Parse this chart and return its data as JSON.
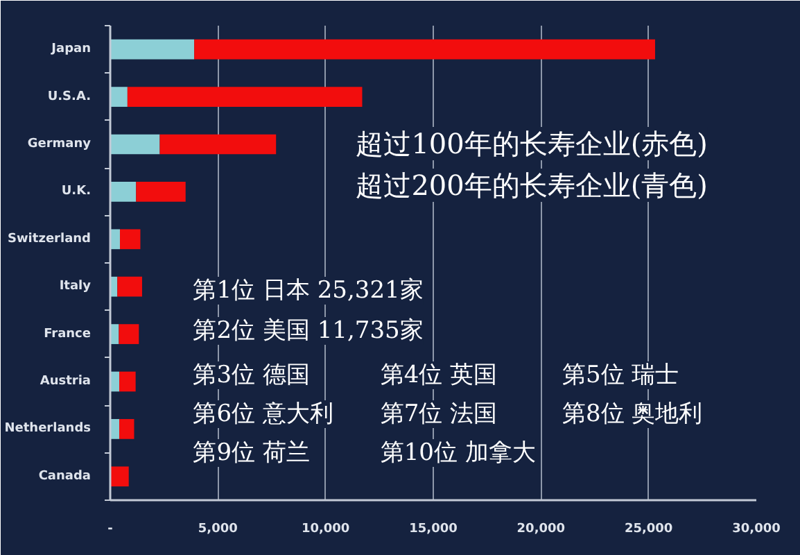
{
  "chart_data": {
    "type": "bar",
    "orientation": "horizontal",
    "stacked": true,
    "categories": [
      "Japan",
      "U.S.A.",
      "Germany",
      "U.K.",
      "Switzerland",
      "Italy",
      "France",
      "Austria",
      "Netherlands",
      "Canada"
    ],
    "series": [
      {
        "color": "#8ccfd6",
        "values": [
          3900,
          800,
          2300,
          1200,
          450,
          330,
          400,
          420,
          420,
          null
        ]
      },
      {
        "color": "#f20d0d",
        "values": [
          21400,
          10900,
          5400,
          2300,
          950,
          1150,
          930,
          760,
          690,
          860
        ]
      }
    ],
    "xlim": [
      0,
      30000
    ],
    "xticks": [
      {
        "value": 0,
        "label": "-"
      },
      {
        "value": 5000,
        "label": "5,000"
      },
      {
        "value": 10000,
        "label": "10,000"
      },
      {
        "value": 15000,
        "label": "15,000"
      },
      {
        "value": 20000,
        "label": "20,000"
      },
      {
        "value": 25000,
        "label": "25,000"
      },
      {
        "value": 30000,
        "label": "30,000"
      }
    ],
    "grid": "x",
    "annotations": [
      "超过100年的长寿企业(赤色)",
      "超过200年的长寿企业(青色)",
      "第1位 日本 25,321家",
      "第2位 美国 11,735家",
      "第3位 德国",
      "第4位 英国",
      "第5位 瑞士",
      "第6位 意大利",
      "第7位 法国",
      "第8位 奥地利",
      "第9位 荷兰",
      "第10位 加拿大"
    ]
  }
}
